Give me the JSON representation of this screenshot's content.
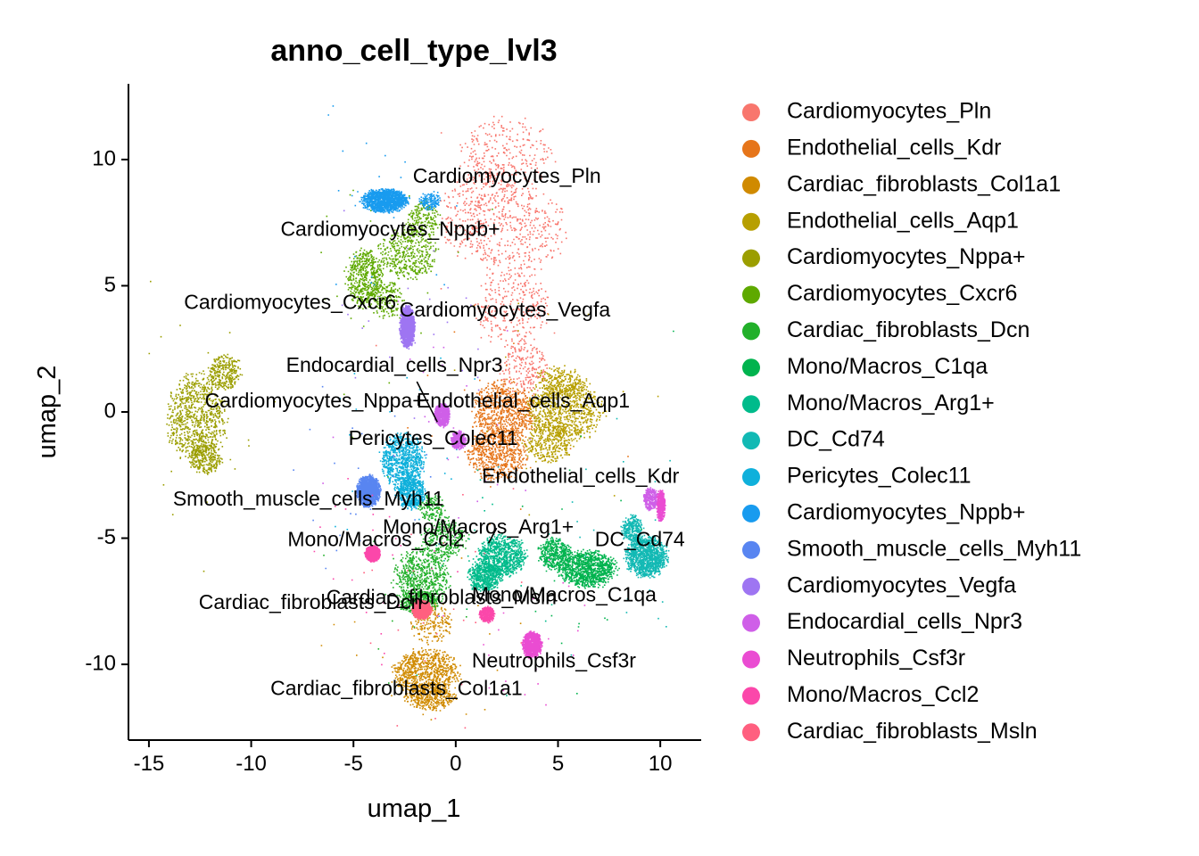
{
  "chart_data": {
    "type": "scatter",
    "title": "anno_cell_type_lvl3",
    "xlabel": "umap_1",
    "ylabel": "umap_2",
    "xlim": [
      -16.0,
      12.0
    ],
    "ylim": [
      -13.0,
      13.0
    ],
    "x_ticks": [
      -15,
      -10,
      -5,
      0,
      5,
      10
    ],
    "y_ticks": [
      -10,
      -5,
      0,
      5,
      10
    ],
    "legend_position": "right",
    "grid": false,
    "series": [
      {
        "name": "Cardiomyocytes_Pln",
        "color": "#F8766D",
        "center": [
          2.3,
          6.5
        ],
        "blobs": [
          [
            2.5,
            10.3,
            2.2,
            1.4,
            0.18
          ],
          [
            2.8,
            7.2,
            2.5,
            1.8,
            0.3
          ],
          [
            2.7,
            4.2,
            1.7,
            1.5,
            0.2
          ],
          [
            3.3,
            1.8,
            1.2,
            1.1,
            0.14
          ],
          [
            0.3,
            7.8,
            1.2,
            1.5,
            0.1
          ],
          [
            1.5,
            9.0,
            1.5,
            1.2,
            0.08
          ]
        ]
      },
      {
        "name": "Endothelial_cells_Kdr",
        "color": "#E6751A",
        "center": [
          2.2,
          -0.8
        ],
        "blobs": [
          [
            2.3,
            0.0,
            1.5,
            1.2,
            0.55
          ],
          [
            2.0,
            -1.7,
            1.4,
            1.0,
            0.45
          ]
        ]
      },
      {
        "name": "Cardiac_fibroblasts_Col1a1",
        "color": "#D08A00",
        "center": [
          -1.5,
          -10.2
        ],
        "blobs": [
          [
            -1.5,
            -10.3,
            1.6,
            0.9,
            0.6
          ],
          [
            -1.3,
            -11.3,
            1.2,
            0.5,
            0.25
          ],
          [
            -1.2,
            -8.3,
            1.0,
            0.8,
            0.15
          ]
        ]
      },
      {
        "name": "Endothelial_cells_Aqp1",
        "color": "#B79F00",
        "center": [
          5.2,
          0.0
        ],
        "blobs": [
          [
            5.3,
            0.1,
            1.8,
            1.2,
            0.6
          ],
          [
            4.5,
            -1.2,
            1.2,
            0.8,
            0.25
          ],
          [
            5.0,
            1.2,
            1.2,
            0.6,
            0.15
          ]
        ]
      },
      {
        "name": "Cardiomyocytes_Nppa+",
        "color": "#9B9E00",
        "center": [
          -12.5,
          0.0
        ],
        "blobs": [
          [
            -12.7,
            -0.2,
            1.4,
            1.7,
            0.6
          ],
          [
            -11.3,
            1.6,
            0.8,
            0.7,
            0.2
          ],
          [
            -12.3,
            -1.8,
            0.8,
            0.6,
            0.2
          ]
        ]
      },
      {
        "name": "Cardiomyocytes_Cxcr6",
        "color": "#5EA900",
        "center": [
          -3.7,
          5.0
        ],
        "blobs": [
          [
            -4.5,
            5.3,
            0.9,
            1.1,
            0.35
          ],
          [
            -2.4,
            6.3,
            1.4,
            1.0,
            0.3
          ],
          [
            -3.5,
            4.5,
            0.9,
            0.7,
            0.15
          ],
          [
            -1.6,
            7.6,
            0.8,
            0.8,
            0.15
          ]
        ]
      },
      {
        "name": "Cardiac_fibroblasts_Dcn",
        "color": "#22B02A",
        "center": [
          -1.4,
          -6.3
        ],
        "blobs": [
          [
            -1.7,
            -6.6,
            1.3,
            1.2,
            0.5
          ],
          [
            -0.6,
            -5.0,
            1.0,
            0.8,
            0.2
          ],
          [
            -1.8,
            -7.5,
            0.9,
            0.5,
            0.2
          ],
          [
            -1.2,
            -3.8,
            0.7,
            0.5,
            0.1
          ]
        ]
      },
      {
        "name": "Mono/Macros_C1qa",
        "color": "#00B34E",
        "center": [
          6.4,
          -6.2
        ],
        "blobs": [
          [
            6.4,
            -6.2,
            1.4,
            0.7,
            0.7
          ],
          [
            4.8,
            -5.6,
            0.8,
            0.6,
            0.3
          ]
        ]
      },
      {
        "name": "Mono/Macros_Arg1+",
        "color": "#00BB8B",
        "center": [
          1.8,
          -5.6
        ],
        "blobs": [
          [
            2.2,
            -5.7,
            1.2,
            0.8,
            0.6
          ],
          [
            1.4,
            -6.5,
            0.8,
            0.6,
            0.4
          ]
        ]
      },
      {
        "name": "DC_Cd74",
        "color": "#12B9B4",
        "center": [
          9.3,
          -5.7
        ],
        "blobs": [
          [
            9.3,
            -5.7,
            1.0,
            0.8,
            0.8
          ],
          [
            8.6,
            -4.6,
            0.5,
            0.5,
            0.2
          ]
        ]
      },
      {
        "name": "Pericytes_Colec11",
        "color": "#0FB0DB",
        "center": [
          -2.5,
          -2.1
        ],
        "blobs": [
          [
            -2.6,
            -1.9,
            1.0,
            1.1,
            0.6
          ],
          [
            -2.2,
            -3.2,
            0.7,
            0.6,
            0.4
          ]
        ]
      },
      {
        "name": "Cardiomyocytes_Nppb+",
        "color": "#189BEF",
        "center": [
          -3.4,
          8.4
        ],
        "blobs": [
          [
            -3.5,
            8.4,
            1.1,
            0.45,
            0.9
          ],
          [
            -1.3,
            8.4,
            0.5,
            0.35,
            0.1
          ]
        ]
      },
      {
        "name": "Smooth_muscle_cells_Myh11",
        "color": "#5885F1",
        "center": [
          -4.3,
          -3.1
        ],
        "blobs": [
          [
            -4.3,
            -3.1,
            0.55,
            0.6,
            1.0
          ]
        ]
      },
      {
        "name": "Cardiomyocytes_Vegfa",
        "color": "#9E75F2",
        "center": [
          -2.4,
          3.2
        ],
        "blobs": [
          [
            -2.4,
            3.4,
            0.35,
            0.8,
            1.0
          ]
        ]
      },
      {
        "name": "Endocardial_cells_Npr3",
        "color": "#CF5FE8",
        "center": [
          -0.5,
          -0.3
        ],
        "blobs": [
          [
            -0.7,
            -0.1,
            0.35,
            0.45,
            0.5
          ],
          [
            0.1,
            -1.1,
            0.35,
            0.35,
            0.3
          ],
          [
            9.5,
            -3.4,
            0.35,
            0.45,
            0.2
          ]
        ]
      },
      {
        "name": "Neutrophils_Csf3r",
        "color": "#EA4CD2",
        "center": [
          3.7,
          -9.2
        ],
        "blobs": [
          [
            3.7,
            -9.2,
            0.45,
            0.5,
            0.7
          ],
          [
            10.0,
            -3.7,
            0.2,
            0.6,
            0.3
          ]
        ]
      },
      {
        "name": "Mono/Macros_Ccl2",
        "color": "#FB47AA",
        "center": [
          -4.0,
          -5.6
        ],
        "blobs": [
          [
            -4.1,
            -5.6,
            0.35,
            0.3,
            0.7
          ],
          [
            1.5,
            -8.0,
            0.35,
            0.3,
            0.3
          ]
        ]
      },
      {
        "name": "Cardiac_fibroblasts_Msln",
        "color": "#FF5F7F",
        "center": [
          -1.7,
          -7.8
        ],
        "blobs": [
          [
            -1.7,
            -7.8,
            0.45,
            0.35,
            1.0
          ]
        ]
      }
    ],
    "cluster_labels": [
      {
        "text": "Cardiomyocytes_Pln",
        "x": 2.5,
        "y": 9.3
      },
      {
        "text": "Cardiomyocytes_Nppb+",
        "x": -3.2,
        "y": 7.2
      },
      {
        "text": "Cardiomyocytes_Cxcr6",
        "x": -8.1,
        "y": 4.3
      },
      {
        "text": "Cardiomyocytes_Vegfa",
        "x": 2.4,
        "y": 4.0
      },
      {
        "text": "Endocardial_cells_Npr3",
        "x": -3.0,
        "y": 1.8
      },
      {
        "text": "Cardiomyocytes_Nppa+",
        "x": -6.9,
        "y": 0.4
      },
      {
        "text": "Endothelial_cells_Aqp1",
        "x": 3.3,
        "y": 0.4
      },
      {
        "text": "Pericytes_Colec11",
        "x": -1.1,
        "y": -1.1
      },
      {
        "text": "Endothelial_cells_Kdr",
        "x": 6.1,
        "y": -2.6
      },
      {
        "text": "Smooth_muscle_cells_Myh11",
        "x": -7.2,
        "y": -3.5
      },
      {
        "text": "Mono/Macros_Arg1+",
        "x": 1.1,
        "y": -4.6
      },
      {
        "text": "Mono/Macros_Ccl2",
        "x": -3.9,
        "y": -5.1
      },
      {
        "text": "DC_Cd74",
        "x": 9.0,
        "y": -5.1
      },
      {
        "text": "Mono/Macros_C1qa",
        "x": 5.3,
        "y": -7.3
      },
      {
        "text": "Cardiac_fibroblasts_Dcn",
        "x": -7.1,
        "y": -7.6
      },
      {
        "text": "Cardiac_fibroblasts_Msln",
        "x": -0.7,
        "y": -7.4
      },
      {
        "text": "Neutrophils_Csf3r",
        "x": 4.8,
        "y": -9.9
      },
      {
        "text": "Cardiac_fibroblasts_Col1a1",
        "x": -2.9,
        "y": -11.0
      }
    ],
    "leader_lines": [
      [
        [
          -1.9,
          1.2
        ],
        [
          -0.9,
          -0.4
        ]
      ],
      [
        [
          2.0,
          -4.6
        ],
        [
          1.6,
          -5.2
        ]
      ]
    ]
  }
}
